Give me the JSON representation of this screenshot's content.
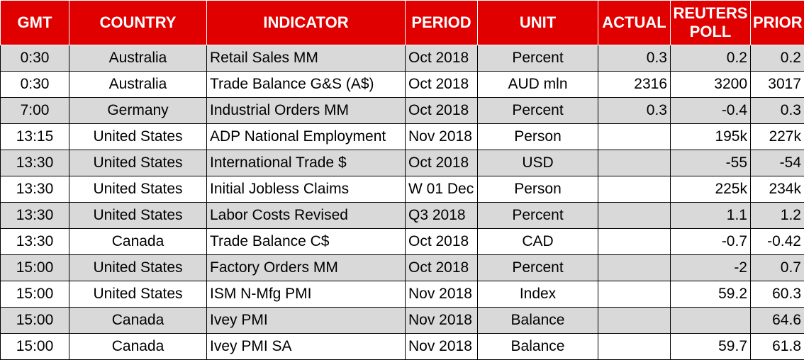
{
  "columns": {
    "gmt": "GMT",
    "country": "COUNTRY",
    "indicator": "INDICATOR",
    "period": "PERIOD",
    "unit": "UNIT",
    "actual": "ACTUAL",
    "poll_line1": "REUTERS",
    "poll_line2": "POLL",
    "prior": "PRIOR"
  },
  "colors": {
    "header_bg": "#e00000",
    "header_text": "#ffffff",
    "shaded_row": "#d9d9d9"
  },
  "rows": [
    {
      "gmt": "0:30",
      "country": "Australia",
      "indicator": "Retail Sales MM",
      "period": "Oct 2018",
      "unit": "Percent",
      "actual": "0.3",
      "poll": "0.2",
      "prior": "0.2"
    },
    {
      "gmt": "0:30",
      "country": "Australia",
      "indicator": "Trade Balance G&S (A$)",
      "period": "Oct 2018",
      "unit": "AUD mln",
      "actual": "2316",
      "poll": "3200",
      "prior": "3017"
    },
    {
      "gmt": "7:00",
      "country": "Germany",
      "indicator": "Industrial Orders MM",
      "period": "Oct 2018",
      "unit": "Percent",
      "actual": "0.3",
      "poll": "-0.4",
      "prior": "0.3"
    },
    {
      "gmt": "13:15",
      "country": "United States",
      "indicator": "ADP National Employment",
      "period": "Nov 2018",
      "unit": "Person",
      "actual": "",
      "poll": "195k",
      "prior": "227k"
    },
    {
      "gmt": "13:30",
      "country": "United States",
      "indicator": "International Trade $",
      "period": "Oct 2018",
      "unit": "USD",
      "actual": "",
      "poll": "-55",
      "prior": "-54"
    },
    {
      "gmt": "13:30",
      "country": "United States",
      "indicator": "Initial Jobless Claims",
      "period": "W 01 Dec",
      "unit": "Person",
      "actual": "",
      "poll": "225k",
      "prior": "234k"
    },
    {
      "gmt": "13:30",
      "country": "United States",
      "indicator": "Labor Costs Revised",
      "period": "Q3 2018",
      "unit": "Percent",
      "actual": "",
      "poll": "1.1",
      "prior": "1.2"
    },
    {
      "gmt": "13:30",
      "country": "Canada",
      "indicator": "Trade Balance C$",
      "period": "Oct 2018",
      "unit": "CAD",
      "actual": "",
      "poll": "-0.7",
      "prior": "-0.42"
    },
    {
      "gmt": "15:00",
      "country": "United States",
      "indicator": "Factory Orders MM",
      "period": "Oct 2018",
      "unit": "Percent",
      "actual": "",
      "poll": "-2",
      "prior": "0.7"
    },
    {
      "gmt": "15:00",
      "country": "United States",
      "indicator": "ISM N-Mfg PMI",
      "period": "Nov 2018",
      "unit": "Index",
      "actual": "",
      "poll": "59.2",
      "prior": "60.3"
    },
    {
      "gmt": "15:00",
      "country": "Canada",
      "indicator": "Ivey PMI",
      "period": "Nov 2018",
      "unit": "Balance",
      "actual": "",
      "poll": "",
      "prior": "64.6"
    },
    {
      "gmt": "15:00",
      "country": "Canada",
      "indicator": "Ivey PMI SA",
      "period": "Nov 2018",
      "unit": "Balance",
      "actual": "",
      "poll": "59.7",
      "prior": "61.8"
    }
  ]
}
